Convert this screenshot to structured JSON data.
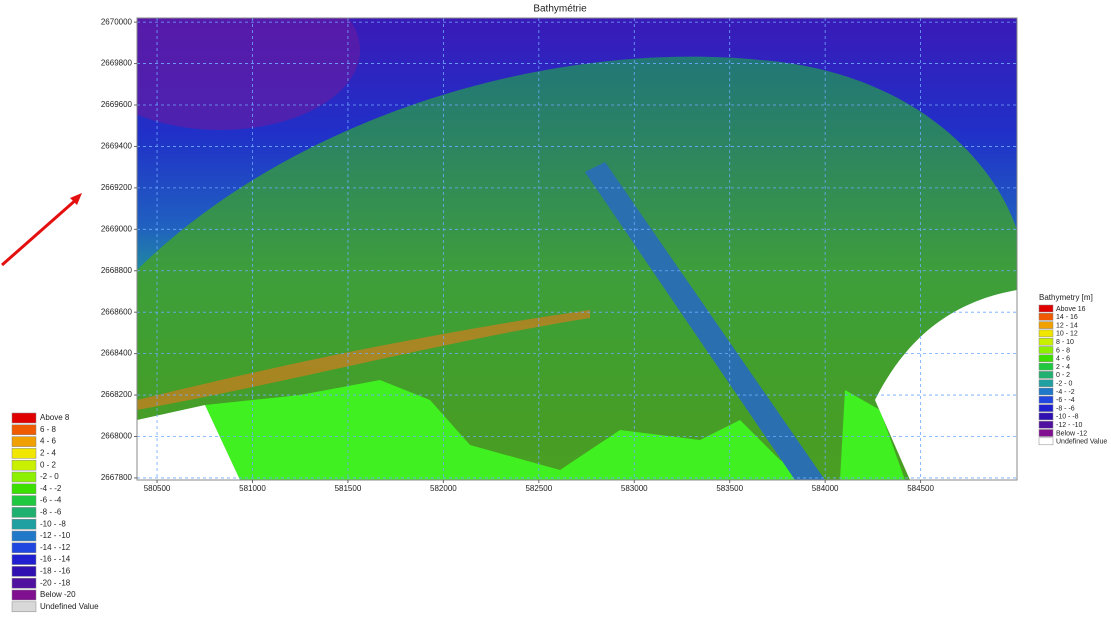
{
  "plot": {
    "title": "Bathymétrie",
    "xlim": [
      580395,
      585005
    ],
    "ylim": [
      2667790,
      2670020
    ],
    "xticks": [
      580500,
      581000,
      581500,
      582000,
      582500,
      583000,
      583500,
      584000,
      584500
    ],
    "yticks": [
      2667800,
      2668000,
      2668200,
      2668400,
      2668600,
      2668800,
      2669000,
      2669200,
      2669400,
      2669600,
      2669800,
      2670000
    ]
  },
  "legend_right": {
    "title": "Bathymetry [m]",
    "items": [
      {
        "label": "Above 16",
        "color": "#e00000"
      },
      {
        "label": "14 - 16",
        "color": "#f05a00"
      },
      {
        "label": "12 - 14",
        "color": "#f0a000"
      },
      {
        "label": "10 - 12",
        "color": "#f0e600"
      },
      {
        "label": "8 - 10",
        "color": "#c8f000"
      },
      {
        "label": "6 - 8",
        "color": "#8cf000"
      },
      {
        "label": "4 - 6",
        "color": "#3ce000"
      },
      {
        "label": "2 - 4",
        "color": "#20c840"
      },
      {
        "label": "0 - 2",
        "color": "#20b070"
      },
      {
        "label": "-2 - 0",
        "color": "#20a0a0"
      },
      {
        "label": "-4 - -2",
        "color": "#2078c8"
      },
      {
        "label": "-6 - -4",
        "color": "#2048e0"
      },
      {
        "label": "-8 - -6",
        "color": "#2020d0"
      },
      {
        "label": "-10 - -8",
        "color": "#3010b0"
      },
      {
        "label": "-12 - -10",
        "color": "#5010a0"
      },
      {
        "label": "Below -12",
        "color": "#801090"
      },
      {
        "label": "Undefined Value",
        "color": "#ffffff"
      }
    ]
  },
  "legend_left": {
    "items": [
      {
        "label": "Above 8",
        "color": "#e00000"
      },
      {
        "label": "6 - 8",
        "color": "#f05a00"
      },
      {
        "label": "4 - 6",
        "color": "#f0a000"
      },
      {
        "label": "2 - 4",
        "color": "#f0e600"
      },
      {
        "label": "0 - 2",
        "color": "#c8f000"
      },
      {
        "label": "-2 - 0",
        "color": "#8cf000"
      },
      {
        "label": "-4 - -2",
        "color": "#3ce000"
      },
      {
        "label": "-6 - -4",
        "color": "#20c840"
      },
      {
        "label": "-8 - -6",
        "color": "#20b070"
      },
      {
        "label": "-10 - -8",
        "color": "#20a0a0"
      },
      {
        "label": "-12 - -10",
        "color": "#2078c8"
      },
      {
        "label": "-14 - -12",
        "color": "#2048e0"
      },
      {
        "label": "-16 - -14",
        "color": "#2020d0"
      },
      {
        "label": "-18 - -16",
        "color": "#3010b0"
      },
      {
        "label": "-20 - -18",
        "color": "#5010a0"
      },
      {
        "label": "Below -20",
        "color": "#801090"
      },
      {
        "label": "Undefined Value",
        "color": "#d8d8d8"
      }
    ]
  }
}
